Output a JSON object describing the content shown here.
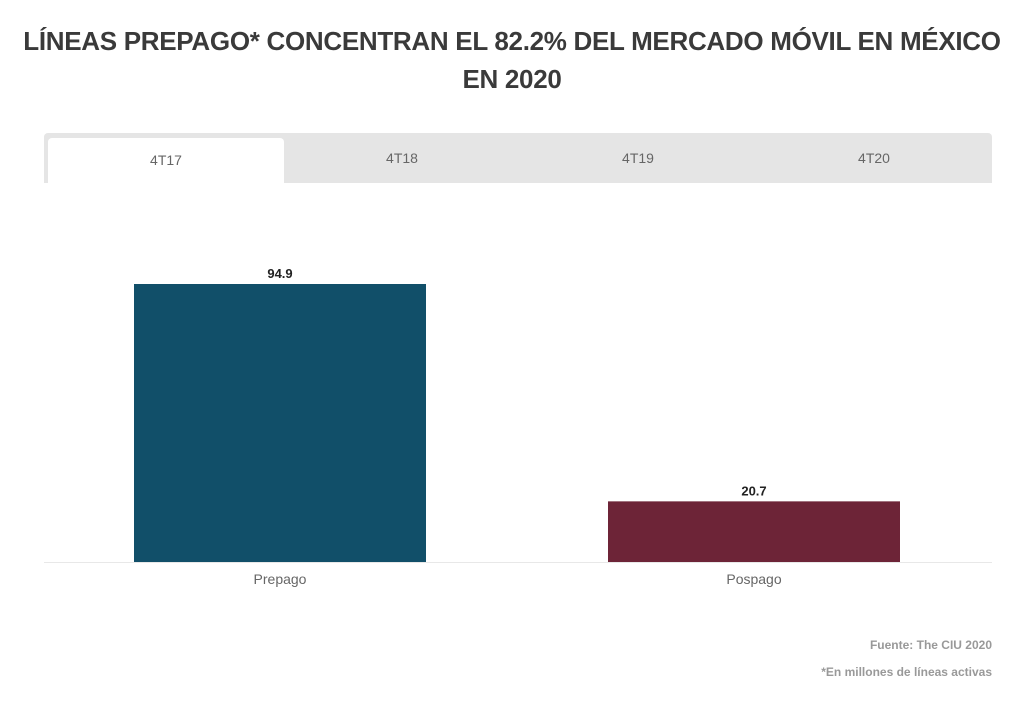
{
  "title": "LÍNEAS PREPAGO* CONCENTRAN EL 82.2% DEL MERCADO MÓVIL EN MÉXICO EN 2020",
  "tabs": [
    {
      "label": "4T17",
      "active": true
    },
    {
      "label": "4T18"
    },
    {
      "label": "4T19"
    },
    {
      "label": "4T20"
    }
  ],
  "chart_data": {
    "type": "bar",
    "categories": [
      "Prepago",
      "Pospago"
    ],
    "values": [
      94.9,
      20.7
    ],
    "data_labels": [
      "94.9",
      "20.7"
    ],
    "colors": [
      "#114f69",
      "#6d2437"
    ],
    "ylim": [
      0,
      94.9
    ],
    "grid": false
  },
  "footer": {
    "source": "Fuente: The CIU 2020",
    "note": "*En millones de líneas activas"
  }
}
